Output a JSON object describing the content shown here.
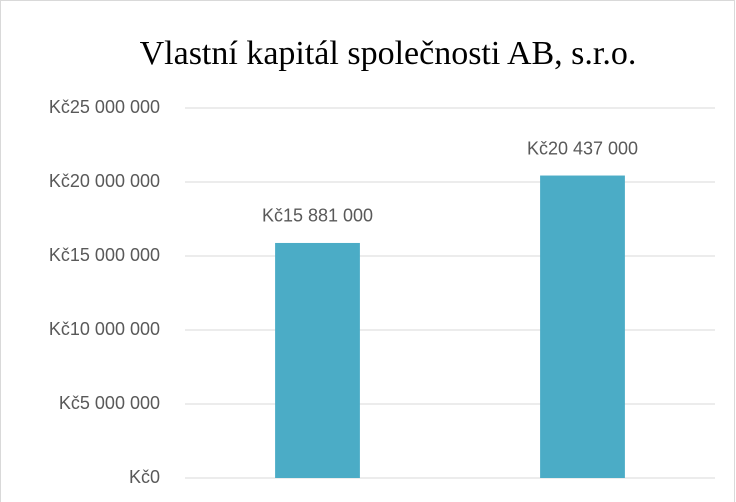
{
  "chart_data": {
    "type": "bar",
    "title": "Vlastní kapitál společnosti AB, s.r.o.",
    "categories": [
      null,
      null
    ],
    "values": [
      15881000,
      20437000
    ],
    "value_labels": [
      "Kč15 881 000",
      "Kč20 437 000"
    ],
    "color": "#4bacc6",
    "ylim": [
      0,
      25000000
    ],
    "yticks": [
      {
        "value": 0,
        "label": "Kč0"
      },
      {
        "value": 5000000,
        "label": "Kč5 000 000"
      },
      {
        "value": 10000000,
        "label": "Kč10 000 000"
      },
      {
        "value": 15000000,
        "label": "Kč15 000 000"
      },
      {
        "value": 20000000,
        "label": "Kč20 000 000"
      },
      {
        "value": 25000000,
        "label": "Kč25 000 000"
      }
    ],
    "grid": true
  }
}
